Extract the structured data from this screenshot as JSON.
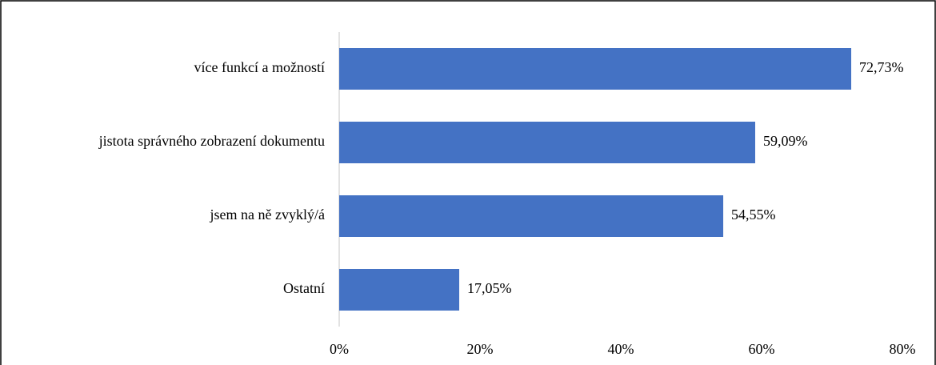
{
  "chart_data": {
    "type": "bar",
    "orientation": "horizontal",
    "categories": [
      "více funkcí a možností",
      "jistota správného zobrazení dokumentu",
      "jsem na ně zvyklý/á",
      "Ostatní"
    ],
    "values": [
      72.73,
      59.09,
      54.55,
      17.05
    ],
    "value_labels": [
      "72,73%",
      "59,09%",
      "54,55%",
      "17,05%"
    ],
    "color": "#4472c4",
    "xlim": [
      0,
      80
    ],
    "xticks": [
      {
        "value": 0,
        "label": "0%"
      },
      {
        "value": 20,
        "label": "20%"
      },
      {
        "value": 40,
        "label": "40%"
      },
      {
        "value": 60,
        "label": "60%"
      },
      {
        "value": 80,
        "label": "80%"
      }
    ],
    "grid": false
  }
}
